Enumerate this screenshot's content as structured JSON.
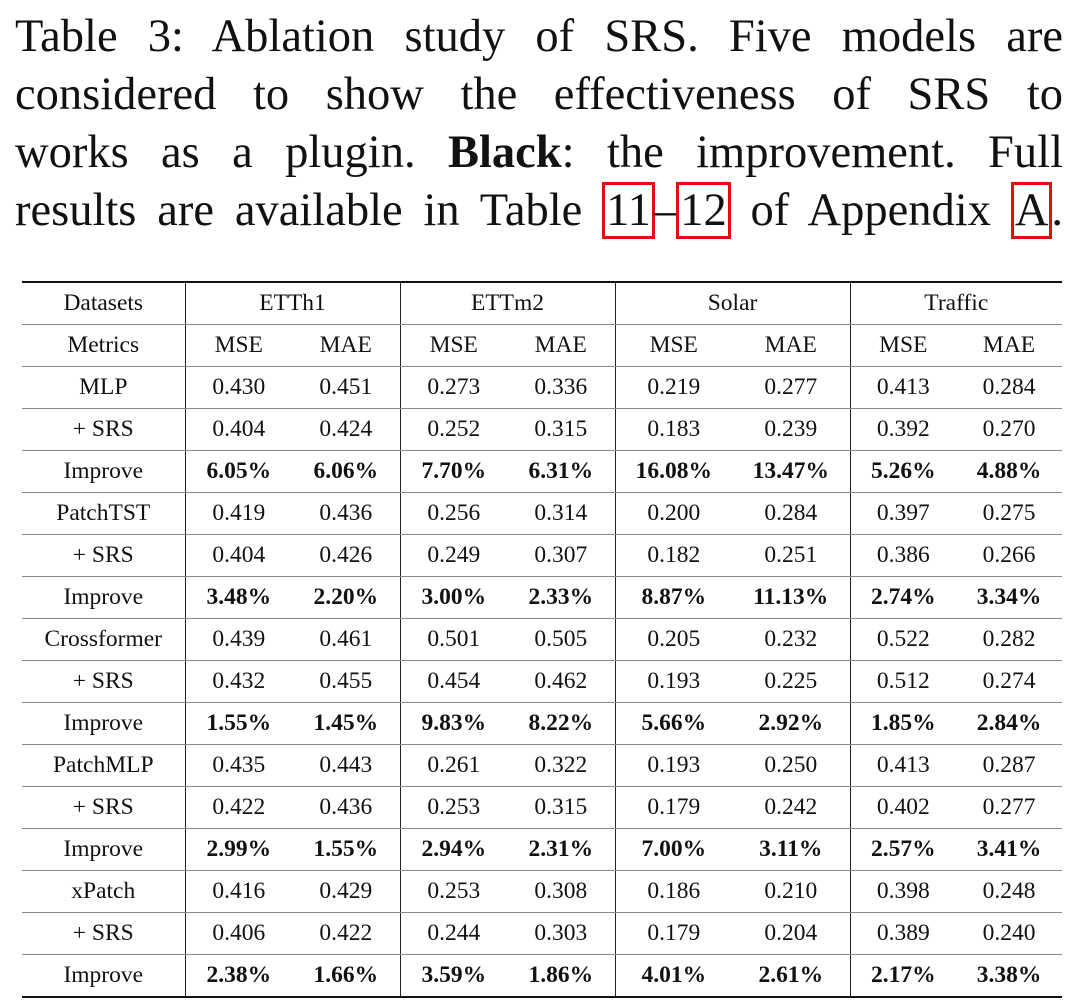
{
  "caption": {
    "line1": "Table 3: Ablation study of SRS. Five models are",
    "line2": "considered to show the effectiveness of SRS to",
    "line3_a": "works as a plugin.",
    "line3_bold": "Black",
    "line3_b": ": the improvement. Full",
    "line4_a": "results are available in Table",
    "ref1": "11",
    "dash": "–",
    "ref2": "12",
    "line4_b": "of Appendix",
    "ref3": "A",
    "line4_c": ".",
    "ref_box_color": "#e01010"
  },
  "table": {
    "header": [
      "Datasets",
      "ETTh1",
      "ETTm2",
      "Solar",
      "Traffic"
    ],
    "metrics": [
      "Metrics",
      "MSE",
      "MAE",
      "MSE",
      "MAE",
      "MSE",
      "MAE",
      "MSE",
      "MAE"
    ],
    "rows": [
      {
        "label": "MLP",
        "bold": false,
        "values": [
          "0.430",
          "0.451",
          "0.273",
          "0.336",
          "0.219",
          "0.277",
          "0.413",
          "0.284"
        ]
      },
      {
        "label": "+ SRS",
        "bold": false,
        "values": [
          "0.404",
          "0.424",
          "0.252",
          "0.315",
          "0.183",
          "0.239",
          "0.392",
          "0.270"
        ]
      },
      {
        "label": "Improve",
        "bold": true,
        "values": [
          "6.05%",
          "6.06%",
          "7.70%",
          "6.31%",
          "16.08%",
          "13.47%",
          "5.26%",
          "4.88%"
        ]
      },
      {
        "label": "PatchTST",
        "bold": false,
        "values": [
          "0.419",
          "0.436",
          "0.256",
          "0.314",
          "0.200",
          "0.284",
          "0.397",
          "0.275"
        ]
      },
      {
        "label": "+ SRS",
        "bold": false,
        "values": [
          "0.404",
          "0.426",
          "0.249",
          "0.307",
          "0.182",
          "0.251",
          "0.386",
          "0.266"
        ]
      },
      {
        "label": "Improve",
        "bold": true,
        "values": [
          "3.48%",
          "2.20%",
          "3.00%",
          "2.33%",
          "8.87%",
          "11.13%",
          "2.74%",
          "3.34%"
        ]
      },
      {
        "label": "Crossformer",
        "bold": false,
        "values": [
          "0.439",
          "0.461",
          "0.501",
          "0.505",
          "0.205",
          "0.232",
          "0.522",
          "0.282"
        ]
      },
      {
        "label": "+ SRS",
        "bold": false,
        "values": [
          "0.432",
          "0.455",
          "0.454",
          "0.462",
          "0.193",
          "0.225",
          "0.512",
          "0.274"
        ]
      },
      {
        "label": "Improve",
        "bold": true,
        "values": [
          "1.55%",
          "1.45%",
          "9.83%",
          "8.22%",
          "5.66%",
          "2.92%",
          "1.85%",
          "2.84%"
        ]
      },
      {
        "label": "PatchMLP",
        "bold": false,
        "values": [
          "0.435",
          "0.443",
          "0.261",
          "0.322",
          "0.193",
          "0.250",
          "0.413",
          "0.287"
        ]
      },
      {
        "label": "+ SRS",
        "bold": false,
        "values": [
          "0.422",
          "0.436",
          "0.253",
          "0.315",
          "0.179",
          "0.242",
          "0.402",
          "0.277"
        ]
      },
      {
        "label": "Improve",
        "bold": true,
        "values": [
          "2.99%",
          "1.55%",
          "2.94%",
          "2.31%",
          "7.00%",
          "3.11%",
          "2.57%",
          "3.41%"
        ]
      },
      {
        "label": "xPatch",
        "bold": false,
        "values": [
          "0.416",
          "0.429",
          "0.253",
          "0.308",
          "0.186",
          "0.210",
          "0.398",
          "0.248"
        ]
      },
      {
        "label": "+ SRS",
        "bold": false,
        "values": [
          "0.406",
          "0.422",
          "0.244",
          "0.303",
          "0.179",
          "0.204",
          "0.389",
          "0.240"
        ]
      },
      {
        "label": "Improve",
        "bold": true,
        "values": [
          "2.38%",
          "1.66%",
          "3.59%",
          "1.86%",
          "4.01%",
          "2.61%",
          "2.17%",
          "3.38%"
        ]
      }
    ]
  }
}
